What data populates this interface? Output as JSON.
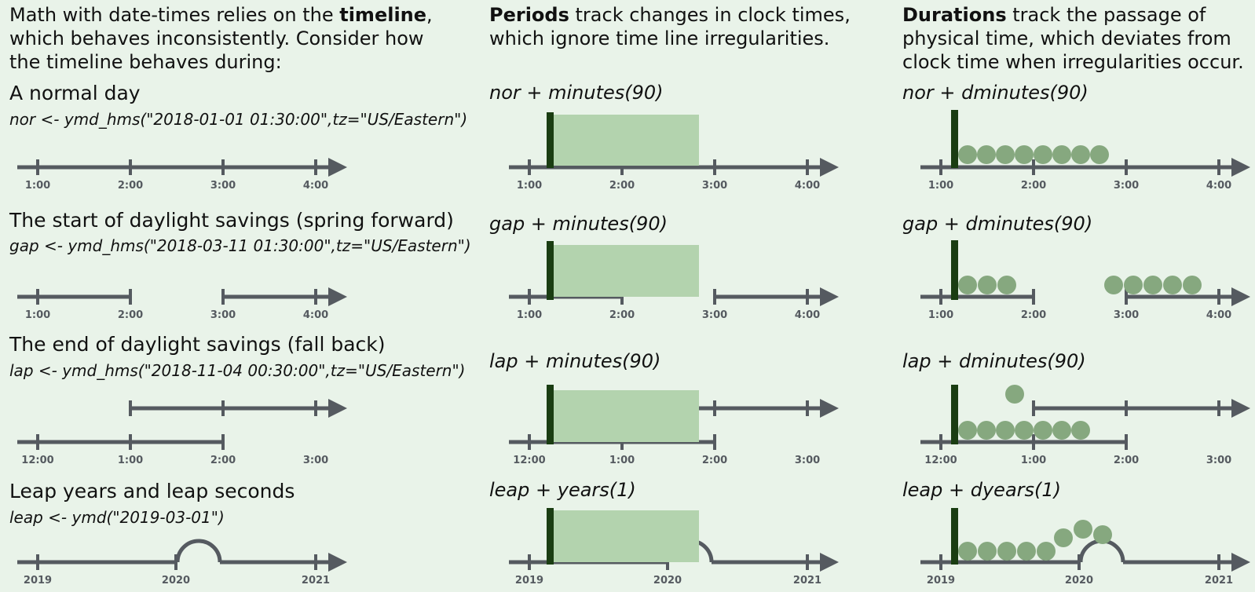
{
  "col1": {
    "intro": {
      "pre": "Math with date-times relies on the ",
      "bold": "timeline",
      "post": ",",
      "line2": "which behaves inconsistently.  Consider how",
      "line3": "the timeline behaves during:"
    },
    "normal": {
      "title": "A normal day",
      "code": "nor <- ymd_hms(\"2018-01-01 01:30:00\",tz=\"US/Eastern\")"
    },
    "gap": {
      "title": "The start of daylight savings (spring forward)",
      "code": "gap <- ymd_hms(\"2018-03-11 01:30:00\",tz=\"US/Eastern\")"
    },
    "lap": {
      "title": "The end of daylight savings (fall back)",
      "code": "lap <- ymd_hms(\"2018-11-04 00:30:00\",tz=\"US/Eastern\")"
    },
    "leap": {
      "title": "Leap years and leap seconds",
      "code": "leap <- ymd(\"2019-03-01\")"
    }
  },
  "col2": {
    "intro": {
      "bold": "Periods",
      "post": " track changes in clock times,",
      "line2": "which ignore time line irregularities."
    },
    "exprs": [
      "nor + minutes(90)",
      "gap + minutes(90)",
      "lap + minutes(90)",
      "leap + years(1)"
    ]
  },
  "col3": {
    "intro": {
      "bold": "Durations",
      "post": " track the passage of",
      "line2": "physical time, which deviates from",
      "line3": "clock time when irregularities occur."
    },
    "exprs": [
      "nor + dminutes(90)",
      "gap + dminutes(90)",
      "lap + dminutes(90)",
      "leap + dyears(1)"
    ]
  },
  "ticks": {
    "normal": [
      "1:00",
      "2:00",
      "3:00",
      "4:00"
    ],
    "lap": [
      "12:00",
      "1:00",
      "2:00",
      "3:00"
    ],
    "leap": [
      "2019",
      "2020",
      "2021"
    ]
  },
  "colors": {
    "axis": "#555a60",
    "period_fill": "#b3d3ae",
    "marker": "#1a3d12",
    "dot": "#86a87f",
    "background": "#e9f3e9"
  }
}
